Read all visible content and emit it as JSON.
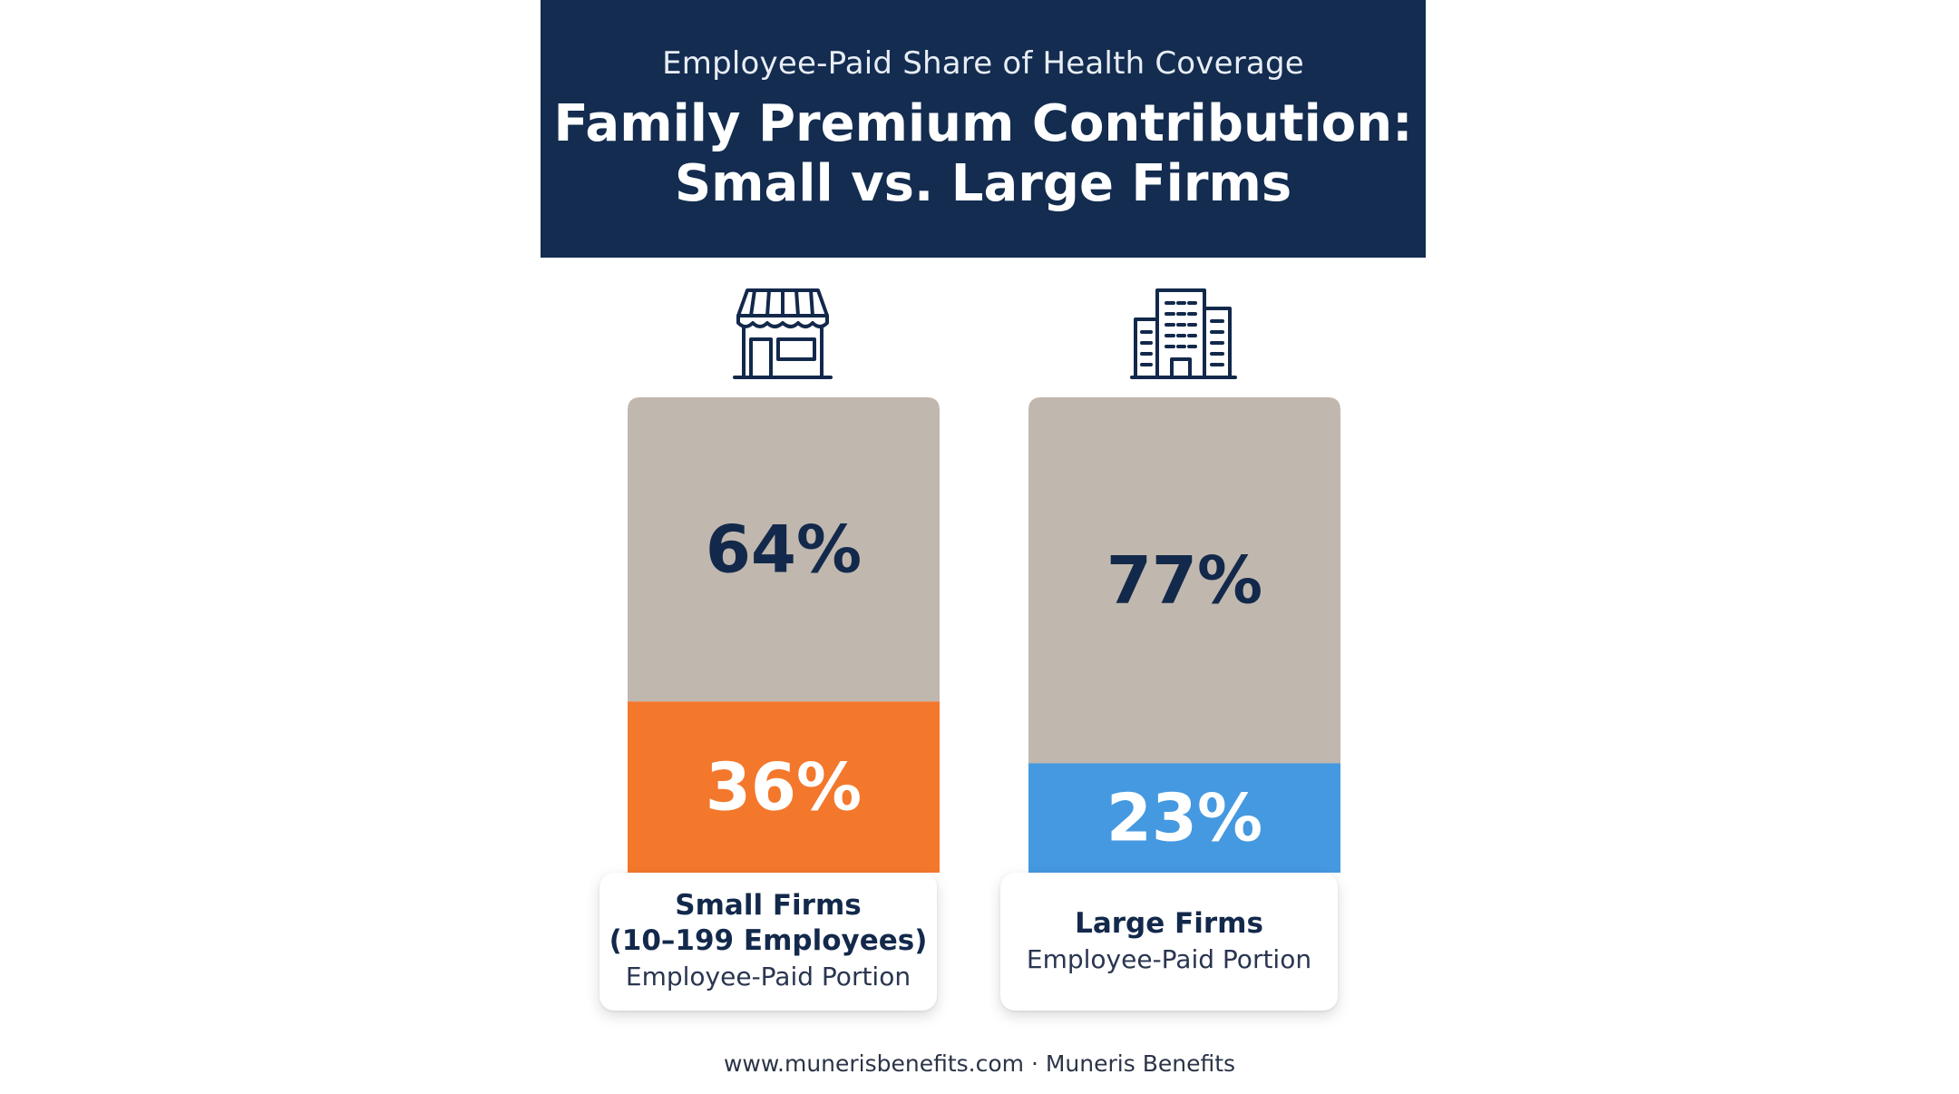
{
  "header": {
    "subtitle": "Employee-Paid Share of Health Coverage",
    "title": "Family Premium Contribution:\nSmall vs. Large Firms"
  },
  "chart_data": {
    "type": "bar",
    "stacked": true,
    "percent": true,
    "categories": [
      "Small Firms (10–199 Employees)",
      "Large Firms"
    ],
    "series": [
      {
        "name": "Employee-Paid Portion",
        "values": [
          36,
          23
        ],
        "colors": [
          "#f3782c",
          "#4599e0"
        ],
        "labels": [
          "36%",
          "23%"
        ]
      },
      {
        "name": "",
        "values": [
          64,
          77
        ],
        "colors": [
          "#c0b7ae",
          "#c0b7ae"
        ],
        "labels": [
          "64%",
          "77%"
        ]
      }
    ],
    "ylim": [
      0,
      100
    ]
  },
  "cards": [
    {
      "name": "Small Firms\n(10–199 Employees)",
      "sub": "Employee-Paid Portion",
      "icon": "storefront-icon"
    },
    {
      "name": "Large Firms",
      "sub": "Employee-Paid Portion",
      "icon": "office-building-icon"
    }
  ],
  "footer": "www.munerisbenefits.com · Muneris Benefits"
}
